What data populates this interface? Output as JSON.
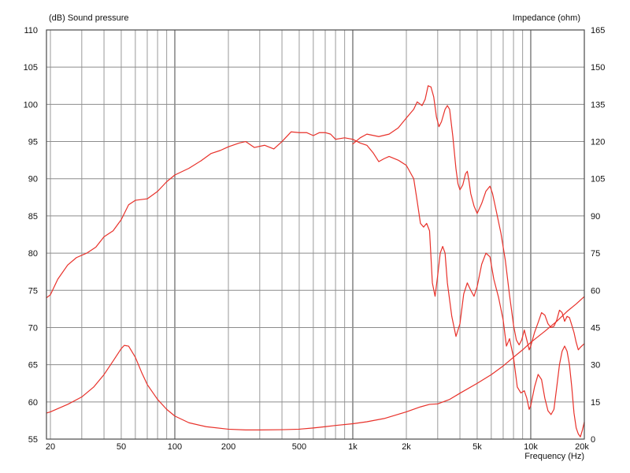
{
  "chart_data": {
    "type": "line",
    "left_axis_title": "(dB)  Sound pressure",
    "right_axis_title": "Impedance  (ohm)",
    "x_axis_title": "Frequency  (Hz)",
    "x_scale": "log",
    "xlim": [
      19,
      20000
    ],
    "ylim_left": [
      55,
      110
    ],
    "ylim_right": [
      0,
      165
    ],
    "grid": true,
    "line_color": "#e8312a",
    "x_ticks": [
      {
        "value": 20,
        "label": "20"
      },
      {
        "value": 50,
        "label": "50"
      },
      {
        "value": 100,
        "label": "100"
      },
      {
        "value": 200,
        "label": "200"
      },
      {
        "value": 500,
        "label": "500"
      },
      {
        "value": 1000,
        "label": "1k"
      },
      {
        "value": 2000,
        "label": "2k"
      },
      {
        "value": 5000,
        "label": "5k"
      },
      {
        "value": 10000,
        "label": "10k"
      },
      {
        "value": 20000,
        "label": "20k"
      }
    ],
    "left_ticks": [
      "110",
      "105",
      "100",
      "95",
      "90",
      "85",
      "80",
      "75",
      "70",
      "65",
      "60",
      "55"
    ],
    "right_ticks": [
      "165",
      "150",
      "135",
      "120",
      "105",
      "90",
      "75",
      "60",
      "45",
      "30",
      "15",
      "0"
    ],
    "series": [
      {
        "axis": "left",
        "points": [
          [
            19,
            74.0
          ],
          [
            20,
            74.4
          ],
          [
            22,
            76.5
          ],
          [
            25,
            78.4
          ],
          [
            28,
            79.4
          ],
          [
            32,
            80.0
          ],
          [
            36,
            80.8
          ],
          [
            40,
            82.2
          ],
          [
            45,
            83.0
          ],
          [
            50,
            84.5
          ],
          [
            55,
            86.5
          ],
          [
            60,
            87.1
          ],
          [
            70,
            87.3
          ],
          [
            80,
            88.3
          ],
          [
            90,
            89.6
          ],
          [
            100,
            90.5
          ],
          [
            120,
            91.4
          ],
          [
            140,
            92.4
          ],
          [
            160,
            93.4
          ],
          [
            180,
            93.8
          ],
          [
            200,
            94.3
          ],
          [
            230,
            94.8
          ],
          [
            250,
            95.0
          ],
          [
            280,
            94.2
          ],
          [
            320,
            94.5
          ],
          [
            360,
            94.0
          ],
          [
            400,
            95.0
          ],
          [
            450,
            96.3
          ],
          [
            500,
            96.2
          ],
          [
            550,
            96.2
          ],
          [
            600,
            95.8
          ],
          [
            650,
            96.2
          ],
          [
            700,
            96.2
          ],
          [
            750,
            96.0
          ],
          [
            800,
            95.3
          ],
          [
            900,
            95.5
          ],
          [
            1000,
            95.3
          ],
          [
            1100,
            94.8
          ],
          [
            1200,
            94.5
          ],
          [
            1300,
            93.5
          ],
          [
            1400,
            92.3
          ],
          [
            1500,
            92.7
          ],
          [
            1600,
            93.0
          ],
          [
            1800,
            92.5
          ],
          [
            2000,
            91.8
          ],
          [
            2200,
            90.0
          ],
          [
            2300,
            87.0
          ],
          [
            2400,
            84.0
          ],
          [
            2500,
            83.5
          ],
          [
            2600,
            84.0
          ],
          [
            2700,
            83.0
          ],
          [
            2800,
            76.0
          ],
          [
            2900,
            74.2
          ],
          [
            3000,
            77.0
          ],
          [
            3100,
            80.0
          ],
          [
            3200,
            80.9
          ],
          [
            3300,
            80.0
          ],
          [
            3400,
            76.0
          ],
          [
            3600,
            71.5
          ],
          [
            3800,
            68.8
          ],
          [
            4000,
            70.5
          ],
          [
            4200,
            74.5
          ],
          [
            4400,
            76.0
          ],
          [
            4600,
            75.0
          ],
          [
            4800,
            74.2
          ],
          [
            5000,
            75.5
          ],
          [
            5300,
            78.5
          ],
          [
            5600,
            80.0
          ],
          [
            5900,
            79.5
          ],
          [
            6200,
            76.5
          ],
          [
            6600,
            74.0
          ],
          [
            7000,
            71.0
          ],
          [
            7300,
            67.5
          ],
          [
            7600,
            68.5
          ],
          [
            8000,
            66.0
          ],
          [
            8400,
            62.0
          ],
          [
            8800,
            61.2
          ],
          [
            9200,
            61.5
          ],
          [
            9500,
            60.5
          ],
          [
            9800,
            59.0
          ],
          [
            10000,
            59.5
          ],
          [
            10500,
            62.0
          ],
          [
            11000,
            63.7
          ],
          [
            11500,
            63.0
          ],
          [
            12000,
            60.5
          ],
          [
            12500,
            58.8
          ],
          [
            13000,
            58.3
          ],
          [
            13500,
            59.0
          ],
          [
            14000,
            62.0
          ],
          [
            14500,
            65.0
          ],
          [
            15000,
            66.8
          ],
          [
            15500,
            67.5
          ],
          [
            16000,
            66.8
          ],
          [
            16500,
            65.0
          ],
          [
            17000,
            62.0
          ],
          [
            17500,
            58.5
          ],
          [
            18000,
            56.5
          ],
          [
            18500,
            55.7
          ],
          [
            19000,
            55.3
          ],
          [
            19500,
            56.2
          ],
          [
            20000,
            57.3
          ]
        ]
      },
      {
        "axis": "right",
        "points": [
          [
            19,
            10.5
          ],
          [
            20,
            11.0
          ],
          [
            25,
            14.0
          ],
          [
            30,
            17.0
          ],
          [
            35,
            21.0
          ],
          [
            40,
            26.0
          ],
          [
            45,
            31.5
          ],
          [
            50,
            36.5
          ],
          [
            52,
            37.8
          ],
          [
            55,
            37.5
          ],
          [
            60,
            33.0
          ],
          [
            65,
            27.0
          ],
          [
            70,
            22.0
          ],
          [
            80,
            16.0
          ],
          [
            90,
            12.0
          ],
          [
            100,
            9.3
          ],
          [
            120,
            6.6
          ],
          [
            150,
            5.0
          ],
          [
            200,
            4.0
          ],
          [
            250,
            3.7
          ],
          [
            300,
            3.7
          ],
          [
            400,
            3.8
          ],
          [
            500,
            4.0
          ],
          [
            600,
            4.5
          ],
          [
            700,
            5.0
          ],
          [
            800,
            5.5
          ],
          [
            1000,
            6.2
          ],
          [
            1200,
            7.0
          ],
          [
            1500,
            8.3
          ],
          [
            1800,
            10.0
          ],
          [
            2000,
            11.0
          ],
          [
            2400,
            13.0
          ],
          [
            2700,
            14.0
          ],
          [
            3000,
            14.2
          ],
          [
            3500,
            16.0
          ],
          [
            4000,
            18.5
          ],
          [
            5000,
            22.5
          ],
          [
            6000,
            26.0
          ],
          [
            7000,
            29.5
          ],
          [
            8000,
            33.0
          ],
          [
            9000,
            36.0
          ],
          [
            10000,
            39.0
          ],
          [
            12000,
            43.5
          ],
          [
            14000,
            47.5
          ],
          [
            16000,
            51.5
          ],
          [
            18000,
            54.5
          ],
          [
            20000,
            57.5
          ]
        ]
      },
      {
        "axis": "right",
        "points": [
          [
            1000,
            119.0
          ],
          [
            1100,
            121.5
          ],
          [
            1200,
            123.0
          ],
          [
            1400,
            122.0
          ],
          [
            1600,
            123.0
          ],
          [
            1800,
            125.5
          ],
          [
            2000,
            129.5
          ],
          [
            2200,
            133.0
          ],
          [
            2300,
            136.0
          ],
          [
            2450,
            134.5
          ],
          [
            2550,
            137.0
          ],
          [
            2650,
            142.5
          ],
          [
            2750,
            142.0
          ],
          [
            2850,
            138.0
          ],
          [
            2950,
            130.0
          ],
          [
            3050,
            126.0
          ],
          [
            3150,
            128.0
          ],
          [
            3300,
            133.0
          ],
          [
            3400,
            134.5
          ],
          [
            3500,
            133.0
          ],
          [
            3650,
            122.0
          ],
          [
            3800,
            109.0
          ],
          [
            3900,
            103.0
          ],
          [
            4000,
            100.5
          ],
          [
            4150,
            102.5
          ],
          [
            4300,
            107.0
          ],
          [
            4400,
            108.0
          ],
          [
            4500,
            104.0
          ],
          [
            4600,
            99.0
          ],
          [
            4800,
            94.0
          ],
          [
            5000,
            91.0
          ],
          [
            5300,
            95.0
          ],
          [
            5600,
            100.0
          ],
          [
            5900,
            102.0
          ],
          [
            6100,
            99.0
          ],
          [
            6400,
            92.0
          ],
          [
            6800,
            83.0
          ],
          [
            7200,
            72.0
          ],
          [
            7600,
            58.0
          ],
          [
            7800,
            52.0
          ],
          [
            8000,
            46.0
          ],
          [
            8300,
            40.0
          ],
          [
            8600,
            38.0
          ],
          [
            8900,
            40.0
          ],
          [
            9200,
            44.0
          ],
          [
            9500,
            40.0
          ],
          [
            9800,
            36.0
          ],
          [
            10000,
            37.5
          ],
          [
            10500,
            43.0
          ],
          [
            11000,
            47.0
          ],
          [
            11500,
            51.0
          ],
          [
            12000,
            50.0
          ],
          [
            12500,
            46.5
          ],
          [
            13000,
            45.0
          ],
          [
            13500,
            45.5
          ],
          [
            14000,
            48.0
          ],
          [
            14500,
            52.0
          ],
          [
            15000,
            51.0
          ],
          [
            15500,
            47.5
          ],
          [
            16000,
            49.5
          ],
          [
            16500,
            49.0
          ],
          [
            17000,
            46.0
          ],
          [
            17500,
            43.0
          ],
          [
            18000,
            39.0
          ],
          [
            18500,
            36.0
          ],
          [
            19000,
            37.0
          ],
          [
            20000,
            38.5
          ]
        ]
      }
    ]
  }
}
